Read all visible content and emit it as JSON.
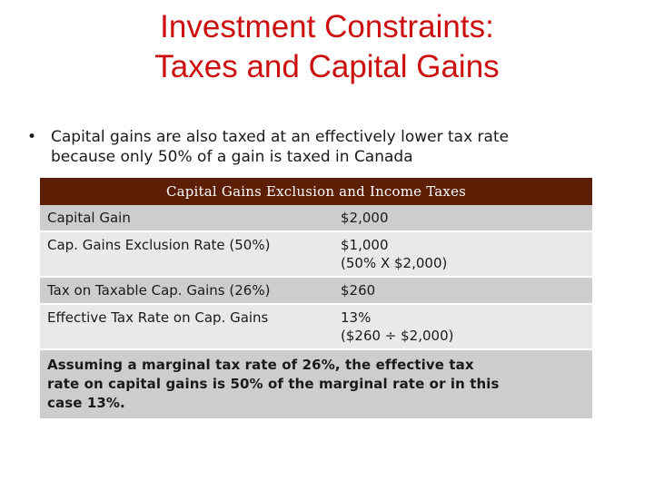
{
  "slide": {
    "title_line1": "Investment Constraints:",
    "title_line2": "Taxes and Capital Gains",
    "bullet": {
      "symbol": "•",
      "text_line1": "Capital gains are also taxed at an effectively lower tax rate",
      "text_line2": "because only 50% of a gain is taxed in Canada"
    }
  },
  "table": {
    "header": "Capital Gains Exclusion and Income Taxes",
    "rows": [
      {
        "label": "Capital Gain",
        "value_line1": "$2,000",
        "value_line2": ""
      },
      {
        "label": "Cap. Gains Exclusion Rate (50%)",
        "value_line1": "$1,000",
        "value_line2": "(50% X $2,000)"
      },
      {
        "label": "Tax on Taxable Cap. Gains (26%)",
        "value_line1": "$260",
        "value_line2": ""
      },
      {
        "label": "Effective Tax Rate on Cap. Gains",
        "value_line1": "13%",
        "value_line2": "($260 ÷ $2,000)"
      }
    ],
    "note_line1": "Assuming a marginal tax rate of 26%, the effective tax",
    "note_line2": "rate on capital gains is 50% of the marginal rate or in this",
    "note_line3": "case 13%."
  }
}
